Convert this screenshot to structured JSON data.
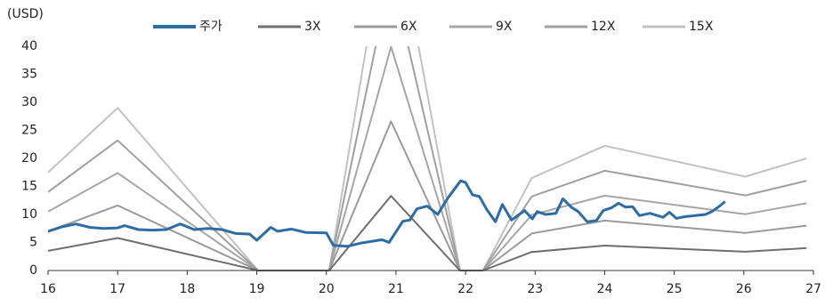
{
  "chart_data": {
    "type": "line",
    "ylabel": "(USD)",
    "xlim": [
      16,
      27
    ],
    "xticks": [
      16,
      17,
      18,
      19,
      20,
      21,
      22,
      23,
      24,
      25,
      26,
      27
    ],
    "ylim": [
      0,
      40
    ],
    "yticks": [
      0,
      5,
      10,
      15,
      20,
      25,
      30,
      35,
      40
    ],
    "grid": false,
    "legend": "top",
    "series": [
      {
        "name": "주가",
        "color": "#2e6da4",
        "width": 3,
        "x": [
          16,
          16.2,
          16.4,
          16.6,
          16.8,
          17,
          17.1,
          17.3,
          17.5,
          17.7,
          17.9,
          18.1,
          18.3,
          18.5,
          18.7,
          18.9,
          19,
          19.2,
          19.3,
          19.5,
          19.7,
          20,
          20.1,
          20.3,
          20.5,
          20.8,
          20.9,
          21.1,
          21.2,
          21.3,
          21.45,
          21.6,
          21.75,
          21.93,
          22.0,
          22.1,
          22.2,
          22.3,
          22.43,
          22.53,
          22.66,
          22.85,
          22.96,
          23.03,
          23.15,
          23.3,
          23.4,
          23.52,
          23.62,
          23.75,
          23.88,
          23.98,
          24.1,
          24.2,
          24.3,
          24.4,
          24.5,
          24.65,
          24.84,
          24.93,
          25.03,
          25.15,
          25.3,
          25.45,
          25.54,
          25.65,
          25.73
        ],
        "values": [
          7.0,
          7.8,
          8.3,
          7.7,
          7.5,
          7.6,
          8.0,
          7.3,
          7.2,
          7.3,
          8.3,
          7.3,
          7.5,
          7.3,
          6.6,
          6.5,
          5.4,
          7.7,
          7.0,
          7.4,
          6.8,
          6.7,
          4.5,
          4.3,
          4.9,
          5.5,
          5.0,
          8.8,
          9.0,
          11.0,
          11.5,
          10.0,
          13.0,
          16.0,
          15.7,
          13.5,
          13.2,
          11.0,
          8.7,
          11.8,
          9.0,
          10.7,
          9.2,
          10.5,
          10.0,
          10.2,
          12.8,
          11.3,
          10.5,
          8.7,
          8.9,
          10.7,
          11.2,
          12.0,
          11.3,
          11.4,
          9.8,
          10.2,
          9.5,
          10.4,
          9.3,
          9.6,
          9.8,
          10.0,
          10.5,
          11.5,
          12.3
        ]
      },
      {
        "name": "3X",
        "color": "#6e6e6e",
        "width": 2,
        "x": [
          16,
          17,
          19.02,
          20.04,
          20.93,
          21.92,
          22.25,
          22.95,
          24.0,
          26.02,
          26.9
        ],
        "values": [
          3.5,
          5.8,
          0,
          0,
          13.3,
          0,
          0,
          3.3,
          4.45,
          3.35,
          4.0
        ]
      },
      {
        "name": "6X",
        "color": "#9a9a9a",
        "width": 2,
        "x": [
          16,
          17,
          19.02,
          20.04,
          20.93,
          21.92,
          22.25,
          22.95,
          24.0,
          26.02,
          26.9
        ],
        "values": [
          7.0,
          11.6,
          0,
          0,
          26.6,
          0,
          0,
          6.6,
          8.9,
          6.7,
          8.0
        ]
      },
      {
        "name": "9X",
        "color": "#a6a6a6",
        "width": 2,
        "x": [
          16,
          17,
          19.02,
          20.04,
          20.93,
          21.92,
          22.25,
          22.95,
          24.0,
          26.02,
          26.9
        ],
        "values": [
          10.5,
          17.4,
          0,
          0,
          39.9,
          0,
          0,
          9.9,
          13.35,
          10.05,
          12.0
        ]
      },
      {
        "name": "12X",
        "color": "#a0a0a0",
        "width": 2,
        "x": [
          16,
          17,
          19.02,
          20.04,
          20.93,
          21.92,
          22.25,
          22.95,
          24.0,
          26.02,
          26.9
        ],
        "values": [
          14.0,
          23.2,
          0,
          0,
          53.2,
          0,
          0,
          13.2,
          17.8,
          13.4,
          16.0
        ]
      },
      {
        "name": "15X",
        "color": "#c2c2c2",
        "width": 2,
        "x": [
          16,
          17,
          19.02,
          20.04,
          20.93,
          21.92,
          22.25,
          22.95,
          24.0,
          26.02,
          26.9
        ],
        "values": [
          17.5,
          29.0,
          0,
          0,
          66.5,
          0,
          0,
          16.5,
          22.25,
          16.75,
          20.0
        ]
      }
    ]
  }
}
